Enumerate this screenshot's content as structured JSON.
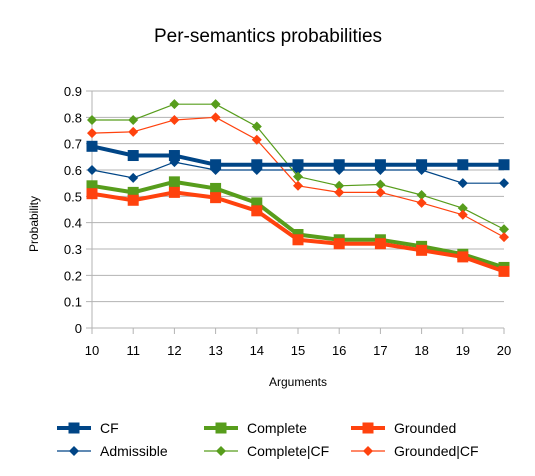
{
  "chart_data": {
    "type": "line",
    "title": "Per-semantics probabilities",
    "xlabel": "Arguments",
    "ylabel": "Probability",
    "x": [
      10,
      11,
      12,
      13,
      14,
      15,
      16,
      17,
      18,
      19,
      20
    ],
    "xlim": [
      10,
      20
    ],
    "ylim": [
      0,
      0.9
    ],
    "yticks": [
      "0",
      "0.1",
      "0.2",
      "0.3",
      "0.4",
      "0.5",
      "0.6",
      "0.7",
      "0.8",
      "0.9"
    ],
    "grid": "horizontal",
    "legend_position": "bottom",
    "series": [
      {
        "name": "CF",
        "marker": "square",
        "weight": "thick",
        "color": "#004586",
        "values": [
          0.69,
          0.655,
          0.655,
          0.62,
          0.62,
          0.62,
          0.62,
          0.62,
          0.62,
          0.62,
          0.62
        ]
      },
      {
        "name": "Complete",
        "marker": "square",
        "weight": "thick",
        "color": "#579d1c",
        "values": [
          0.54,
          0.515,
          0.555,
          0.53,
          0.475,
          0.355,
          0.335,
          0.335,
          0.31,
          0.28,
          0.23
        ]
      },
      {
        "name": "Grounded",
        "marker": "square",
        "weight": "thick",
        "color": "#ff420e",
        "values": [
          0.51,
          0.485,
          0.515,
          0.495,
          0.445,
          0.335,
          0.32,
          0.32,
          0.295,
          0.27,
          0.215
        ]
      },
      {
        "name": "Admissible",
        "marker": "diamond",
        "weight": "thin",
        "color": "#004586",
        "values": [
          0.6,
          0.57,
          0.63,
          0.6,
          0.6,
          0.6,
          0.6,
          0.6,
          0.6,
          0.55,
          0.55
        ]
      },
      {
        "name": "Complete|CF",
        "marker": "diamond",
        "weight": "thin",
        "color": "#579d1c",
        "values": [
          0.79,
          0.79,
          0.85,
          0.85,
          0.765,
          0.575,
          0.54,
          0.545,
          0.505,
          0.455,
          0.375
        ]
      },
      {
        "name": "Grounded|CF",
        "marker": "diamond",
        "weight": "thin",
        "color": "#ff420e",
        "values": [
          0.74,
          0.745,
          0.79,
          0.8,
          0.715,
          0.54,
          0.515,
          0.515,
          0.475,
          0.43,
          0.345
        ]
      }
    ]
  }
}
